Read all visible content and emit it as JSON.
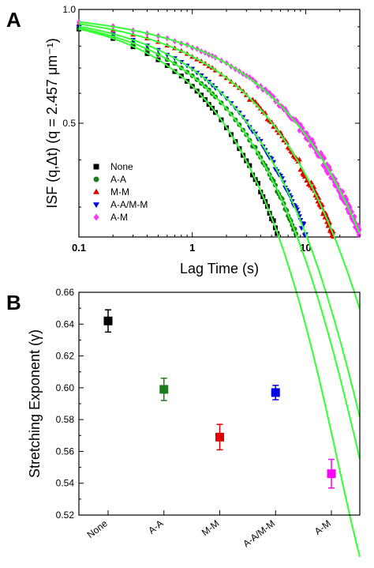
{
  "panels": {
    "a_label": "A",
    "b_label": "B"
  },
  "chart_data": [
    {
      "type": "scatter",
      "panel": "A",
      "xlabel": "Lag Time (s)",
      "ylabel": "ISF (q,Δt) (q = 2.457 μm⁻¹)",
      "x_scale": "log",
      "y_scale": "log",
      "xlim": [
        0.1,
        30
      ],
      "ylim": [
        0.25,
        1.0
      ],
      "x_ticks": [
        0.1,
        1,
        10
      ],
      "x_tick_labels": [
        "0.1",
        "1",
        "10"
      ],
      "y_ticks": [
        0.5,
        1.0
      ],
      "y_tick_labels": [
        "0.5",
        "1.0"
      ],
      "legend_position": "bottom-left",
      "fit_line_color": "#33ff33",
      "series": [
        {
          "name": "None",
          "color": "#000000",
          "marker": "square",
          "tau": 3.3,
          "gamma": 0.642
        },
        {
          "name": "A-A",
          "color": "#1f7a1f",
          "marker": "circle",
          "tau": 4.6,
          "gamma": 0.599
        },
        {
          "name": "M-M",
          "color": "#e00000",
          "marker": "triangle-up",
          "tau": 9.5,
          "gamma": 0.569
        },
        {
          "name": "A-A/M-M",
          "color": "#0000e6",
          "marker": "triangle-down",
          "tau": 5.6,
          "gamma": 0.597
        },
        {
          "name": "A-M",
          "color": "#ff33ff",
          "marker": "diamond",
          "tau": 16.0,
          "gamma": 0.546
        }
      ]
    },
    {
      "type": "scatter",
      "panel": "B",
      "xlabel": "",
      "ylabel": "Stretching Exponent (γ)",
      "categories": [
        "None",
        "A-A",
        "M-M",
        "A-A/M-M",
        "A-M"
      ],
      "ylim": [
        0.52,
        0.66
      ],
      "y_ticks": [
        0.52,
        0.54,
        0.56,
        0.58,
        0.6,
        0.62,
        0.64,
        0.66
      ],
      "y_tick_labels": [
        "0.52",
        "0.54",
        "0.56",
        "0.58",
        "0.60",
        "0.62",
        "0.64",
        "0.66"
      ],
      "grid": false,
      "points": [
        {
          "category": "None",
          "value": 0.642,
          "error": 0.007,
          "color": "#000000"
        },
        {
          "category": "A-A",
          "value": 0.599,
          "error": 0.007,
          "color": "#1f7a1f"
        },
        {
          "category": "M-M",
          "value": 0.569,
          "error": 0.008,
          "color": "#e00000"
        },
        {
          "category": "A-A/M-M",
          "value": 0.597,
          "error": 0.0045,
          "color": "#0000e6"
        },
        {
          "category": "A-M",
          "value": 0.546,
          "error": 0.009,
          "color": "#ff00ff"
        }
      ]
    }
  ]
}
